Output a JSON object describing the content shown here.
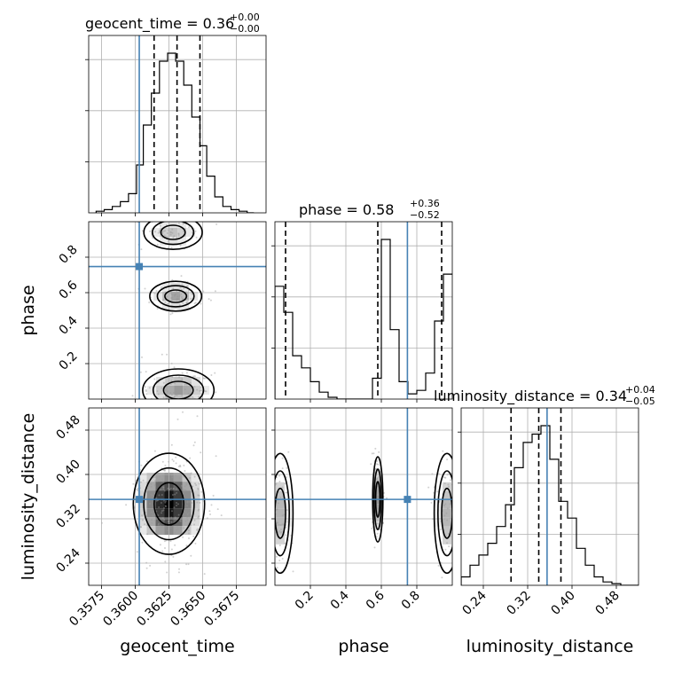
{
  "colors": {
    "truth": "#4682b4",
    "hist": "#000000",
    "grid": "#b0b0b0",
    "quantile": "#000000"
  },
  "chart_data": {
    "type": "corner",
    "parameters": [
      "geocent_time",
      "phase",
      "luminosity_distance"
    ],
    "ranges": [
      [
        0.35655,
        0.3697
      ],
      [
        0.0,
        1.0
      ],
      [
        0.2,
        0.52
      ]
    ],
    "truths": [
      0.3603,
      0.747,
      0.355
    ],
    "titles": [
      {
        "main": "geocent_time = 0.36",
        "sup": "+0.00",
        "sub": "−0.00"
      },
      {
        "main": "phase = 0.58",
        "sup": "+0.36",
        "sub": "−0.52"
      },
      {
        "main": "luminosity_distance = 0.34",
        "sup": "+0.04",
        "sub": "−0.05"
      }
    ],
    "xlabels": [
      "geocent_time",
      "phase",
      "luminosity_distance"
    ],
    "ylabels": [
      "phase",
      "luminosity_distance"
    ],
    "ticks": {
      "geocent_time": [
        "0.3575",
        "0.3600",
        "0.3625",
        "0.3650",
        "0.3675"
      ],
      "phase": [
        "0.2",
        "0.4",
        "0.6",
        "0.8"
      ],
      "luminosity_distance": [
        "0.24",
        "0.32",
        "0.40",
        "0.48"
      ]
    },
    "tick_values": {
      "geocent_time": [
        0.3575,
        0.36,
        0.3625,
        0.365,
        0.3675
      ],
      "phase": [
        0.2,
        0.4,
        0.6,
        0.8
      ],
      "luminosity_distance": [
        0.24,
        0.32,
        0.4,
        0.48
      ]
    },
    "quantiles": [
      [
        0.3614,
        0.3631,
        0.3648
      ],
      [
        0.06,
        0.58,
        0.94
      ],
      [
        0.29,
        0.34,
        0.38
      ]
    ],
    "hist_geocent_time": {
      "bins": [
        0.3571,
        0.3577,
        0.3583,
        0.3589,
        0.3595,
        0.3601,
        0.3606,
        0.3612,
        0.3618,
        0.3624,
        0.363,
        0.3636,
        0.3642,
        0.3648,
        0.3653,
        0.3659,
        0.3665,
        0.3671,
        0.3677,
        0.3683,
        0.3688
      ],
      "counts": [
        1,
        2,
        4,
        7,
        12,
        30,
        55,
        75,
        95,
        100,
        95,
        80,
        60,
        42,
        23,
        10,
        4,
        2,
        1,
        0
      ]
    },
    "hist_phase": {
      "bins": [
        0.0,
        0.05,
        0.1,
        0.15,
        0.2,
        0.25,
        0.3,
        0.35,
        0.4,
        0.45,
        0.5,
        0.55,
        0.6,
        0.65,
        0.7,
        0.75,
        0.8,
        0.85,
        0.9,
        0.95,
        1.0
      ],
      "counts": [
        65,
        50,
        25,
        18,
        10,
        4,
        1,
        0,
        0,
        0,
        0,
        12,
        92,
        40,
        10,
        3,
        5,
        15,
        45,
        72
      ]
    },
    "hist_luminosity_distance": {
      "bins": [
        0.2,
        0.216,
        0.232,
        0.248,
        0.264,
        0.28,
        0.296,
        0.312,
        0.328,
        0.344,
        0.36,
        0.376,
        0.392,
        0.408,
        0.424,
        0.44,
        0.456,
        0.472,
        0.488,
        0.504,
        0.52
      ],
      "counts": [
        5,
        12,
        18,
        25,
        35,
        48,
        70,
        85,
        90,
        95,
        75,
        50,
        40,
        22,
        12,
        5,
        2,
        1,
        0,
        0
      ]
    },
    "scatter": [
      {
        "x": "geocent_time",
        "y": "phase",
        "blobs": [
          [
            0.363,
            0.58,
            0.0008,
            0.035,
            0.36
          ],
          [
            0.3628,
            0.94,
            0.0009,
            0.04,
            0.24
          ],
          [
            0.3632,
            0.05,
            0.0011,
            0.05,
            0.4
          ]
        ]
      },
      {
        "x": "geocent_time",
        "y": "luminosity_distance",
        "blobs": [
          [
            0.3625,
            0.347,
            0.0011,
            0.038,
            1.0
          ]
        ]
      },
      {
        "x": "phase",
        "y": "luminosity_distance",
        "blobs": [
          [
            0.58,
            0.355,
            0.012,
            0.032,
            0.4
          ],
          [
            0.03,
            0.33,
            0.03,
            0.045,
            0.3
          ],
          [
            0.97,
            0.33,
            0.03,
            0.045,
            0.3
          ]
        ]
      }
    ]
  }
}
